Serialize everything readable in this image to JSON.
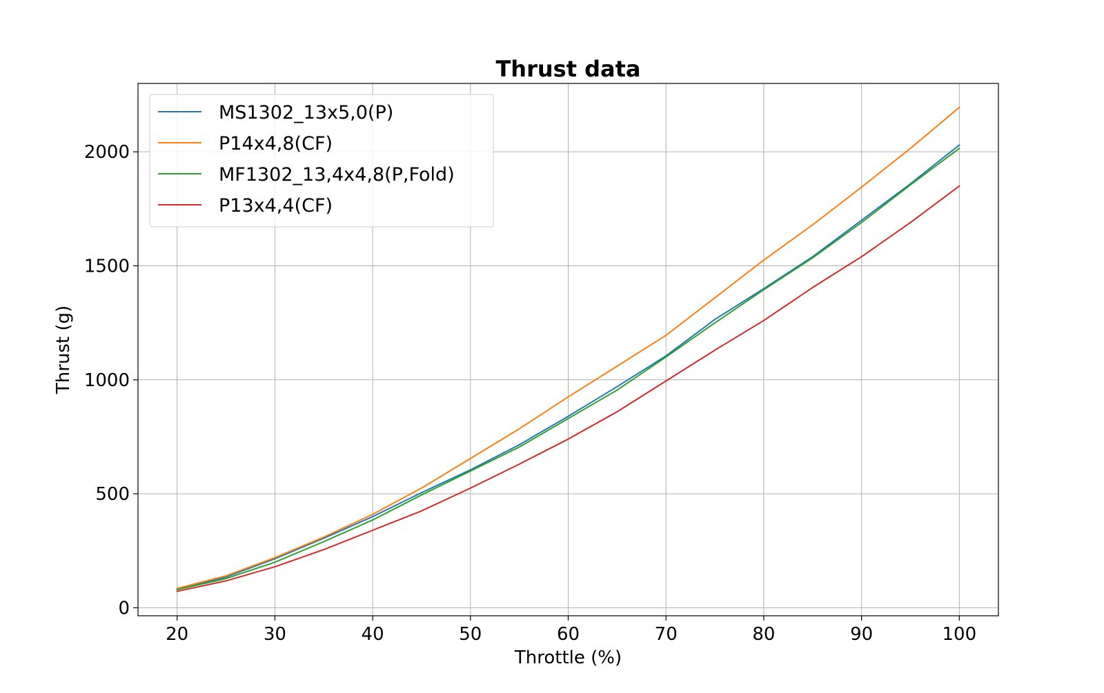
{
  "chart_data": {
    "type": "line",
    "title": "Thrust data",
    "xlabel": "Throttle (%)",
    "ylabel": "Thrust (g)",
    "xlim": [
      16,
      104
    ],
    "ylim": [
      -35,
      2300
    ],
    "xticks": [
      20,
      30,
      40,
      50,
      60,
      70,
      80,
      90,
      100
    ],
    "yticks": [
      0,
      500,
      1000,
      1500,
      2000
    ],
    "grid": true,
    "legend_position": "upper-left",
    "x": [
      20,
      25,
      30,
      35,
      40,
      45,
      50,
      55,
      60,
      65,
      70,
      75,
      80,
      85,
      90,
      95,
      100
    ],
    "series": [
      {
        "name": "MS1302_13x5,0(P)",
        "color": "#1f77b4",
        "values": [
          80,
          135,
          215,
          305,
          400,
          505,
          605,
          715,
          840,
          970,
          1105,
          1265,
          1400,
          1540,
          1700,
          1860,
          2030
        ]
      },
      {
        "name": "P14x4,8(CF)",
        "color": "#ff7f0e",
        "values": [
          85,
          140,
          220,
          310,
          410,
          525,
          655,
          785,
          925,
          1060,
          1195,
          1360,
          1525,
          1680,
          1845,
          2015,
          2195
        ]
      },
      {
        "name": "MF1302_13,4x4,8(P,Fold)",
        "color": "#2ca02c",
        "values": [
          80,
          128,
          200,
          290,
          385,
          495,
          600,
          705,
          830,
          955,
          1100,
          1250,
          1395,
          1535,
          1690,
          1855,
          2015
        ]
      },
      {
        "name": "P13x4,4(CF)",
        "color": "#d62728",
        "values": [
          72,
          118,
          180,
          255,
          340,
          425,
          525,
          630,
          740,
          860,
          995,
          1130,
          1260,
          1405,
          1540,
          1690,
          1850
        ]
      }
    ]
  }
}
